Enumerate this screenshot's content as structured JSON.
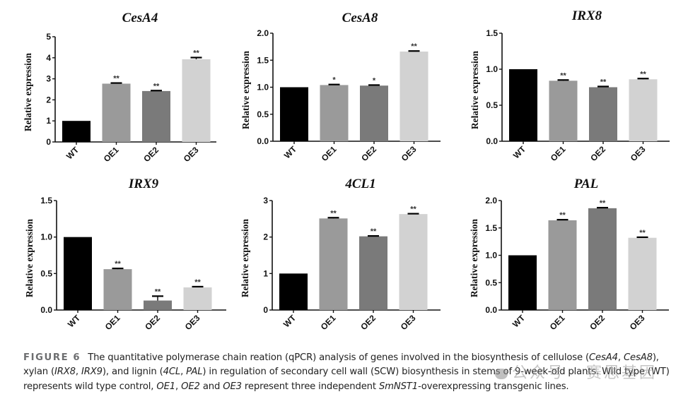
{
  "figure": {
    "label": "FIGURE 6",
    "caption_parts": [
      {
        "t": "The quantitative polymerase chain reation (qPCR) analysis of genes involved in the biosynthesis of cellulose (",
        "i": false
      },
      {
        "t": "CesA4",
        "i": true
      },
      {
        "t": ", ",
        "i": false
      },
      {
        "t": "CesA8",
        "i": true
      },
      {
        "t": "), xylan (",
        "i": false
      },
      {
        "t": "IRX8",
        "i": true
      },
      {
        "t": ", ",
        "i": false
      },
      {
        "t": "IRX9",
        "i": true
      },
      {
        "t": "), and lignin (",
        "i": false
      },
      {
        "t": "4CL",
        "i": true
      },
      {
        "t": ", ",
        "i": false
      },
      {
        "t": "PAL",
        "i": true
      },
      {
        "t": ") in regulation of secondary cell wall (SCW) biosynthesis in stems of 9-week-old plants. Wild type (WT) represents wild type control, ",
        "i": false
      },
      {
        "t": "OE1",
        "i": true
      },
      {
        "t": ", ",
        "i": false
      },
      {
        "t": "OE2",
        "i": true
      },
      {
        "t": " and ",
        "i": false
      },
      {
        "t": "OE3",
        "i": true
      },
      {
        "t": " represent three independent ",
        "i": false
      },
      {
        "t": "SmNST1",
        "i": true
      },
      {
        "t": "-overexpressing transgenic lines.",
        "i": false
      }
    ],
    "watermark": "公众号 · 赛思基因"
  },
  "bar_colors": {
    "WT": "#000000",
    "OE1": "#9a9a9a",
    "OE2": "#7a7a7a",
    "OE3": "#d2d2d2"
  },
  "chart_data": [
    {
      "type": "bar",
      "title": "CesA4",
      "xlabel": "",
      "ylabel": "Relative expression",
      "categories": [
        "WT",
        "OE1",
        "OE2",
        "OE3"
      ],
      "values": [
        1.0,
        2.77,
        2.42,
        3.93
      ],
      "errors": [
        0,
        0.03,
        0.02,
        0.08
      ],
      "significance": [
        "",
        "**",
        "**",
        "**"
      ],
      "ylim": [
        0,
        5
      ],
      "yticks": [
        0,
        1,
        2,
        3,
        4,
        5
      ],
      "ytick_labels": [
        "0",
        "1",
        "2",
        "3",
        "4",
        "5"
      ],
      "grid": false,
      "legend": "none"
    },
    {
      "type": "bar",
      "title": "CesA8",
      "xlabel": "",
      "ylabel": "Relative expression",
      "categories": [
        "WT",
        "OE1",
        "OE2",
        "OE3"
      ],
      "values": [
        1.0,
        1.04,
        1.03,
        1.66
      ],
      "errors": [
        0,
        0.01,
        0.01,
        0.01
      ],
      "significance": [
        "",
        "*",
        "*",
        "**"
      ],
      "ylim": [
        0,
        2.0
      ],
      "yticks": [
        0,
        0.5,
        1.0,
        1.5,
        2.0
      ],
      "ytick_labels": [
        "0.0",
        "0.5",
        "1.0",
        "1.5",
        "2.0"
      ],
      "grid": false,
      "legend": "none"
    },
    {
      "type": "bar",
      "title": "IRX8",
      "xlabel": "",
      "ylabel": "Relative expression",
      "categories": [
        "WT",
        "OE1",
        "OE2",
        "OE3"
      ],
      "values": [
        1.0,
        0.84,
        0.75,
        0.86
      ],
      "errors": [
        0,
        0.01,
        0.01,
        0.01
      ],
      "significance": [
        "",
        "**",
        "**",
        "**"
      ],
      "ylim": [
        0,
        1.5
      ],
      "yticks": [
        0,
        0.5,
        1.0,
        1.5
      ],
      "ytick_labels": [
        "0.0",
        "0.5",
        "1.0",
        "1.5"
      ],
      "grid": false,
      "legend": "none"
    },
    {
      "type": "bar",
      "title": "IRX9",
      "xlabel": "",
      "ylabel": "Relative expression",
      "categories": [
        "WT",
        "OE1",
        "OE2",
        "OE3"
      ],
      "values": [
        1.0,
        0.56,
        0.13,
        0.31
      ],
      "errors": [
        0,
        0.01,
        0.06,
        0.01
      ],
      "significance": [
        "",
        "**",
        "**",
        "**"
      ],
      "ylim": [
        0,
        1.5
      ],
      "yticks": [
        0,
        0.5,
        1.0,
        1.5
      ],
      "ytick_labels": [
        "0.0",
        "0.5",
        "1.0",
        "1.5"
      ],
      "grid": false,
      "legend": "none"
    },
    {
      "type": "bar",
      "title": "4CL1",
      "xlabel": "",
      "ylabel": "Relative expression",
      "categories": [
        "WT",
        "OE1",
        "OE2",
        "OE3"
      ],
      "values": [
        1.0,
        2.51,
        2.02,
        2.63
      ],
      "errors": [
        0,
        0.02,
        0.01,
        0.01
      ],
      "significance": [
        "",
        "**",
        "**",
        "**"
      ],
      "ylim": [
        0,
        3
      ],
      "yticks": [
        0,
        1,
        2,
        3
      ],
      "ytick_labels": [
        "0",
        "1",
        "2",
        "3"
      ],
      "grid": false,
      "legend": "none"
    },
    {
      "type": "bar",
      "title": "PAL",
      "xlabel": "",
      "ylabel": "Relative expression",
      "categories": [
        "WT",
        "OE1",
        "OE2",
        "OE3"
      ],
      "values": [
        1.0,
        1.64,
        1.86,
        1.32
      ],
      "errors": [
        0,
        0.01,
        0.01,
        0.01
      ],
      "significance": [
        "",
        "**",
        "**",
        "**"
      ],
      "ylim": [
        0,
        2.0
      ],
      "yticks": [
        0,
        0.5,
        1.0,
        1.5,
        2.0
      ],
      "ytick_labels": [
        "0.0",
        "0.5",
        "1.0",
        "1.5",
        "2.0"
      ],
      "grid": false,
      "legend": "none"
    }
  ]
}
